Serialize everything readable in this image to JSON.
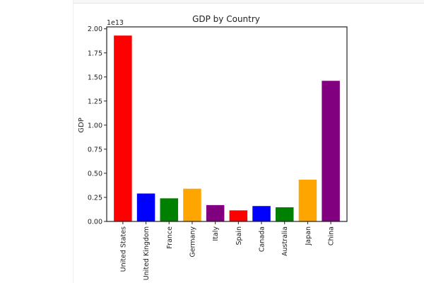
{
  "chart_data": {
    "type": "bar",
    "title": "GDP by Country",
    "xlabel": "",
    "ylabel": "GDP",
    "y_offset_label": "1e13",
    "ylim": [
      0,
      2.02
    ],
    "yticks": [
      "0.00",
      "0.25",
      "0.50",
      "0.75",
      "1.00",
      "1.25",
      "1.50",
      "1.75",
      "2.00"
    ],
    "categories": [
      "United States",
      "United Kingdom",
      "France",
      "Germany",
      "Italy",
      "Spain",
      "Canada",
      "Australia",
      "Japan",
      "China"
    ],
    "values": [
      1.93,
      0.29,
      0.24,
      0.34,
      0.17,
      0.115,
      0.16,
      0.147,
      0.434,
      1.46
    ],
    "colors": [
      "#ff0000",
      "#0000ff",
      "#008000",
      "#ffa500",
      "#800080",
      "#ff0000",
      "#0000ff",
      "#008000",
      "#ffa500",
      "#800080"
    ],
    "grid": false
  }
}
